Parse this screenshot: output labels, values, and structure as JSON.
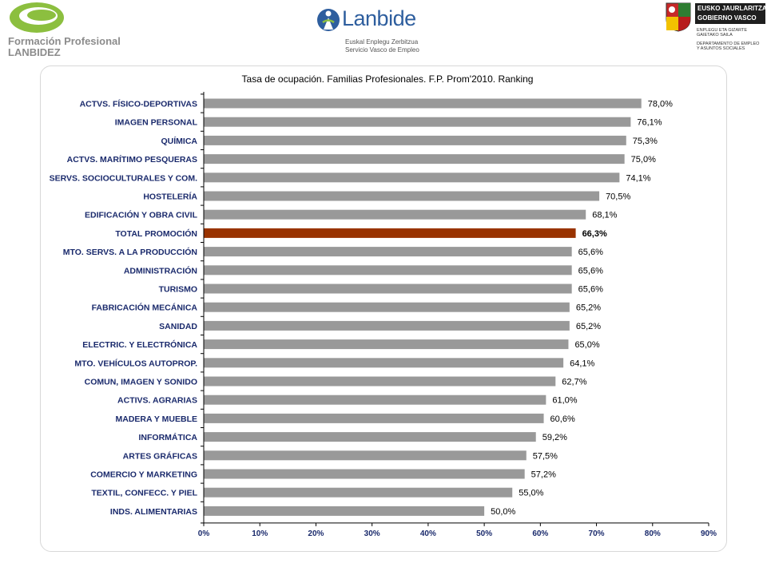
{
  "header": {
    "fp_logo": {
      "line1": "Formación Profesional",
      "line2": "LANBIDEZ"
    },
    "lanbide_logo": {
      "name": "Lanbide",
      "sub1": "Euskal Enplegu Zerbitzua",
      "sub2": "Servicio Vasco de Empleo"
    },
    "gv_logo": {
      "line1": "EUSKO JAURLARITZA",
      "line2": "GOBIERNO VASCO",
      "dept1a": "ENPLEGU ETA GIZARTE",
      "dept1b": "GAIETAKO SAILA",
      "dept2a": "DEPARTAMENTO DE EMPLEO",
      "dept2b": "Y ASUNTOS SOCIALES"
    }
  },
  "colors": {
    "bar": "#999999",
    "highlight_bar": "#993300",
    "axis_text": "#1a2a6c"
  },
  "chart_data": {
    "type": "bar",
    "orientation": "horizontal",
    "title": "Tasa de ocupación. Familias Profesionales. F.P. Prom'2010. Ranking",
    "xlim": [
      0,
      90
    ],
    "x_ticks": [
      "0%",
      "10%",
      "20%",
      "30%",
      "40%",
      "50%",
      "60%",
      "70%",
      "80%",
      "90%"
    ],
    "grid": false,
    "legend": "none",
    "highlight_category": "TOTAL PROMOCIÓN",
    "categories": [
      "ACTVS. FÍSICO-DEPORTIVAS",
      "IMAGEN PERSONAL",
      "QUÍMICA",
      "ACTVS. MARÍTIMO PESQUERAS",
      "SERVS. SOCIOCULTURALES Y COM.",
      "HOSTELERÍA",
      "EDIFICACIÓN Y OBRA CIVIL",
      "TOTAL PROMOCIÓN",
      "MTO. SERVS. A LA PRODUCCIÓN",
      "ADMINISTRACIÓN",
      "TURISMO",
      "FABRICACIÓN MECÁNICA",
      "SANIDAD",
      "ELECTRIC. Y ELECTRÓNICA",
      "MTO. VEHÍCULOS AUTOPROP.",
      "COMUN, IMAGEN Y SONIDO",
      "ACTIVS. AGRARIAS",
      "MADERA Y MUEBLE",
      "INFORMÁTICA",
      "ARTES GRÁFICAS",
      "COMERCIO Y MARKETING",
      "TEXTIL, CONFECC. Y PIEL",
      "INDS. ALIMENTARIAS"
    ],
    "values": [
      78.0,
      76.1,
      75.3,
      75.0,
      74.1,
      70.5,
      68.1,
      66.3,
      65.6,
      65.6,
      65.6,
      65.2,
      65.2,
      65.0,
      64.1,
      62.7,
      61.0,
      60.6,
      59.2,
      57.5,
      57.2,
      55.0,
      50.0
    ],
    "value_labels": [
      "78,0%",
      "76,1%",
      "75,3%",
      "75,0%",
      "74,1%",
      "70,5%",
      "68,1%",
      "66,3%",
      "65,6%",
      "65,6%",
      "65,6%",
      "65,2%",
      "65,2%",
      "65,0%",
      "64,1%",
      "62,7%",
      "61,0%",
      "60,6%",
      "59,2%",
      "57,5%",
      "57,2%",
      "55,0%",
      "50,0%"
    ]
  }
}
